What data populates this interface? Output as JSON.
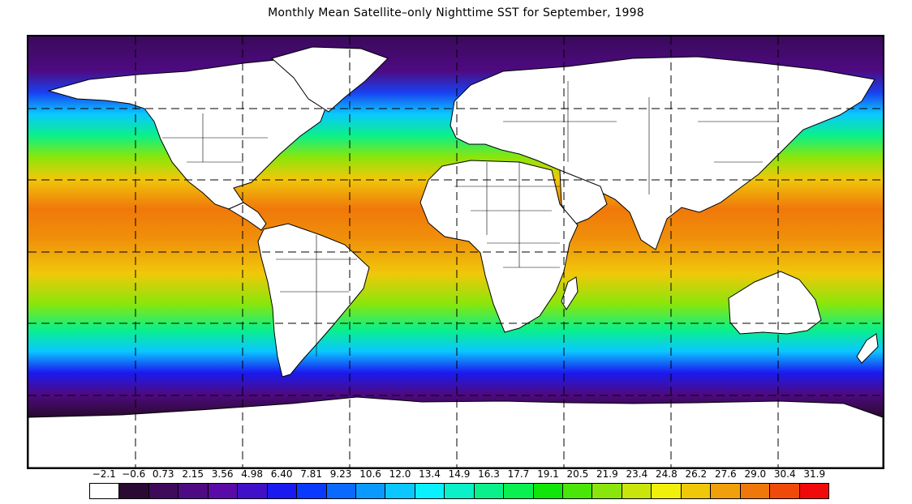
{
  "title": "Monthly Mean Satellite–only Nighttime SST for September, 1998",
  "map": {
    "projection": "equirectangular",
    "longitude_range": [
      -180,
      180
    ],
    "latitude_range": [
      -90,
      90
    ],
    "gridlines": "dashed"
  },
  "colorbar": {
    "ticks": [
      "−2.1",
      "−0.6",
      "0.73",
      "2.15",
      "3.56",
      "4.98",
      "6.40",
      "7.81",
      "9.23",
      "10.6",
      "12.0",
      "13.4",
      "14.9",
      "16.3",
      "17.7",
      "19.1",
      "20.5",
      "21.9",
      "23.4",
      "24.8",
      "26.2",
      "27.6",
      "29.0",
      "30.4",
      "31.9"
    ],
    "colors": [
      "#ffffff",
      "#2a0a32",
      "#3e0a5a",
      "#4e0a82",
      "#5a0aa6",
      "#4010c8",
      "#1a1af0",
      "#0a3aff",
      "#0a6aff",
      "#0a9aff",
      "#0ac8ff",
      "#0af0ff",
      "#0af0c8",
      "#0af08a",
      "#0af050",
      "#10e60a",
      "#4ae60a",
      "#8ae60a",
      "#c8e60a",
      "#f0f00a",
      "#f0c80a",
      "#f0a00a",
      "#f0780a",
      "#f04a0a",
      "#f00a0a"
    ]
  }
}
